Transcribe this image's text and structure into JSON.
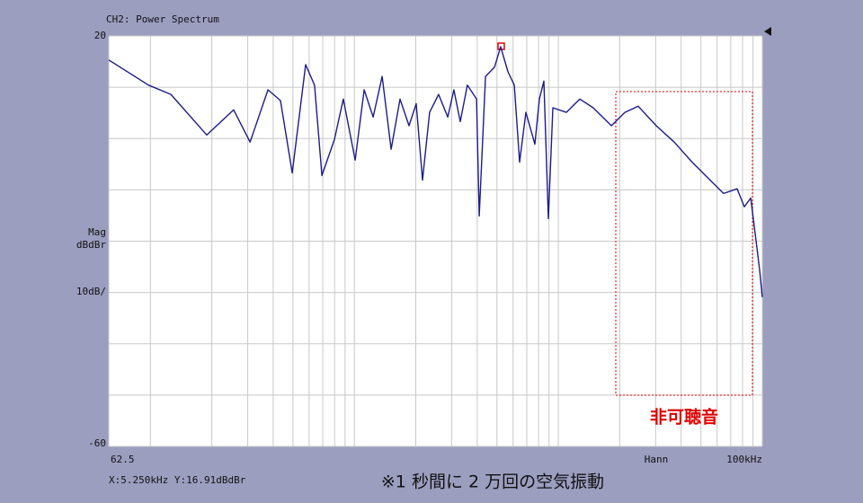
{
  "chart_data": {
    "type": "line",
    "title": "CH2: Power Spectrum",
    "ylabel": [
      "Mag",
      "dBdBr"
    ],
    "yscale_label": "10dB/",
    "window_label": "Hann",
    "readout": "X:5.250kHz Y:16.91dBdBr",
    "region_label": "非可聴音",
    "caption": "※1 秒間に 2 万回の空気振動",
    "xlog": true,
    "grid": true,
    "xlim": [
      62.5,
      100000
    ],
    "xticks": [
      62.5,
      100,
      200,
      300,
      400,
      500,
      600,
      700,
      800,
      900,
      1000,
      2000,
      3000,
      4000,
      5000,
      6000,
      7000,
      8000,
      9000,
      10000,
      20000,
      30000,
      40000,
      50000,
      60000,
      70000,
      80000,
      90000,
      {
        "value": 100000,
        "label": "100kHz"
      }
    ],
    "ylim": [
      -60,
      20
    ],
    "yticks": [
      20,
      10,
      0,
      -10,
      -20,
      -30,
      -40,
      -50,
      -60
    ],
    "series": [
      {
        "name": "CH2",
        "color": "#1c1c8a",
        "x": [
          62.5,
          98,
          126,
          189,
          256,
          308,
          377,
          434,
          496,
          577,
          638,
          693,
          798,
          883,
          1009,
          1117,
          1236,
          1368,
          1514,
          1675,
          1854,
          2009,
          2158,
          2339,
          2588,
          2871,
          3076,
          3304,
          3581,
          3971,
          4093,
          4395,
          4864,
          5212,
          5662,
          6081,
          6457,
          6934,
          7674,
          8072,
          8492,
          8933,
          9397,
          10940,
          12740,
          14830,
          18200,
          21180,
          24660,
          30200,
          37000,
          45290,
          55460,
          64570,
          75300,
          81660,
          87700,
          92260,
          97050,
          100000
        ],
        "values": [
          15.3,
          10.4,
          8.6,
          0.7,
          5.6,
          -0.7,
          9.5,
          7.4,
          -6.7,
          14.4,
          10.4,
          -7.2,
          -0.2,
          7.7,
          -4.2,
          9.5,
          4.2,
          12.1,
          -2.1,
          7.7,
          2.5,
          6.8,
          -8.1,
          5.1,
          8.6,
          4.2,
          9.5,
          3.3,
          10.4,
          7.7,
          -15.1,
          12.1,
          13.9,
          17.9,
          13.0,
          10.4,
          -4.6,
          5.1,
          -1.1,
          7.7,
          11.2,
          -15.6,
          6.0,
          5.1,
          7.7,
          6.0,
          2.5,
          5.1,
          6.3,
          2.5,
          -0.7,
          -4.6,
          -8.1,
          -10.7,
          -9.8,
          -13.3,
          -11.6,
          -18.6,
          -25.6,
          -30.9
        ]
      }
    ]
  }
}
